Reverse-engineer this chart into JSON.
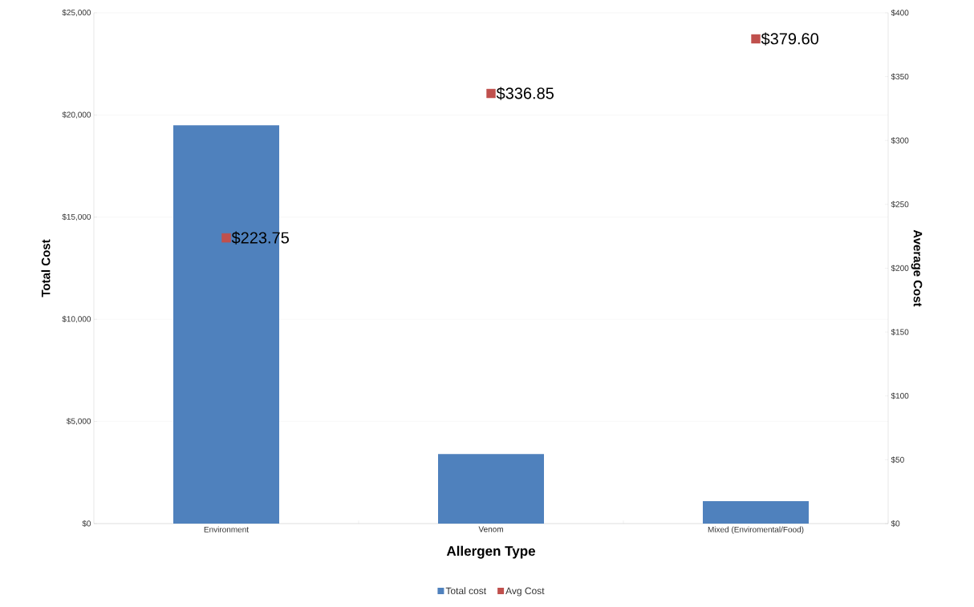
{
  "chart_data": {
    "type": "bar",
    "xlabel": "Allergen Type",
    "ylabel": "Total Cost",
    "y2label": "Average Cost",
    "categories": [
      "Environment",
      "Venom",
      "Mixed (Enviromental/Food)"
    ],
    "series": [
      {
        "name": "Total cost",
        "color": "#4f81bd",
        "values": [
          19500,
          3400,
          1100
        ]
      },
      {
        "name": "Avg Cost",
        "type": "scatter",
        "axis": "y2",
        "color": "#c0504d",
        "values": [
          223.75,
          336.85,
          379.6
        ],
        "value_labels": [
          "$223.75",
          "$336.85",
          "$379.60"
        ]
      }
    ],
    "ylim": [
      0,
      25000
    ],
    "yticks": [
      {
        "value": 0,
        "label": "$0"
      },
      {
        "value": 5000,
        "label": "$5,000"
      },
      {
        "value": 10000,
        "label": "$10,000"
      },
      {
        "value": 15000,
        "label": "$15,000"
      },
      {
        "value": 20000,
        "label": "$20,000"
      },
      {
        "value": 25000,
        "label": "$25,000"
      }
    ],
    "y2lim": [
      0,
      400
    ],
    "y2ticks": [
      {
        "value": 0,
        "label": "$0"
      },
      {
        "value": 50,
        "label": "$50"
      },
      {
        "value": 100,
        "label": "$100"
      },
      {
        "value": 150,
        "label": "$150"
      },
      {
        "value": 200,
        "label": "$200"
      },
      {
        "value": 250,
        "label": "$250"
      },
      {
        "value": 300,
        "label": "$300"
      },
      {
        "value": 350,
        "label": "$350"
      },
      {
        "value": 400,
        "label": "$400"
      }
    ],
    "grid": "y",
    "marker": "square",
    "legend": "bottom"
  }
}
